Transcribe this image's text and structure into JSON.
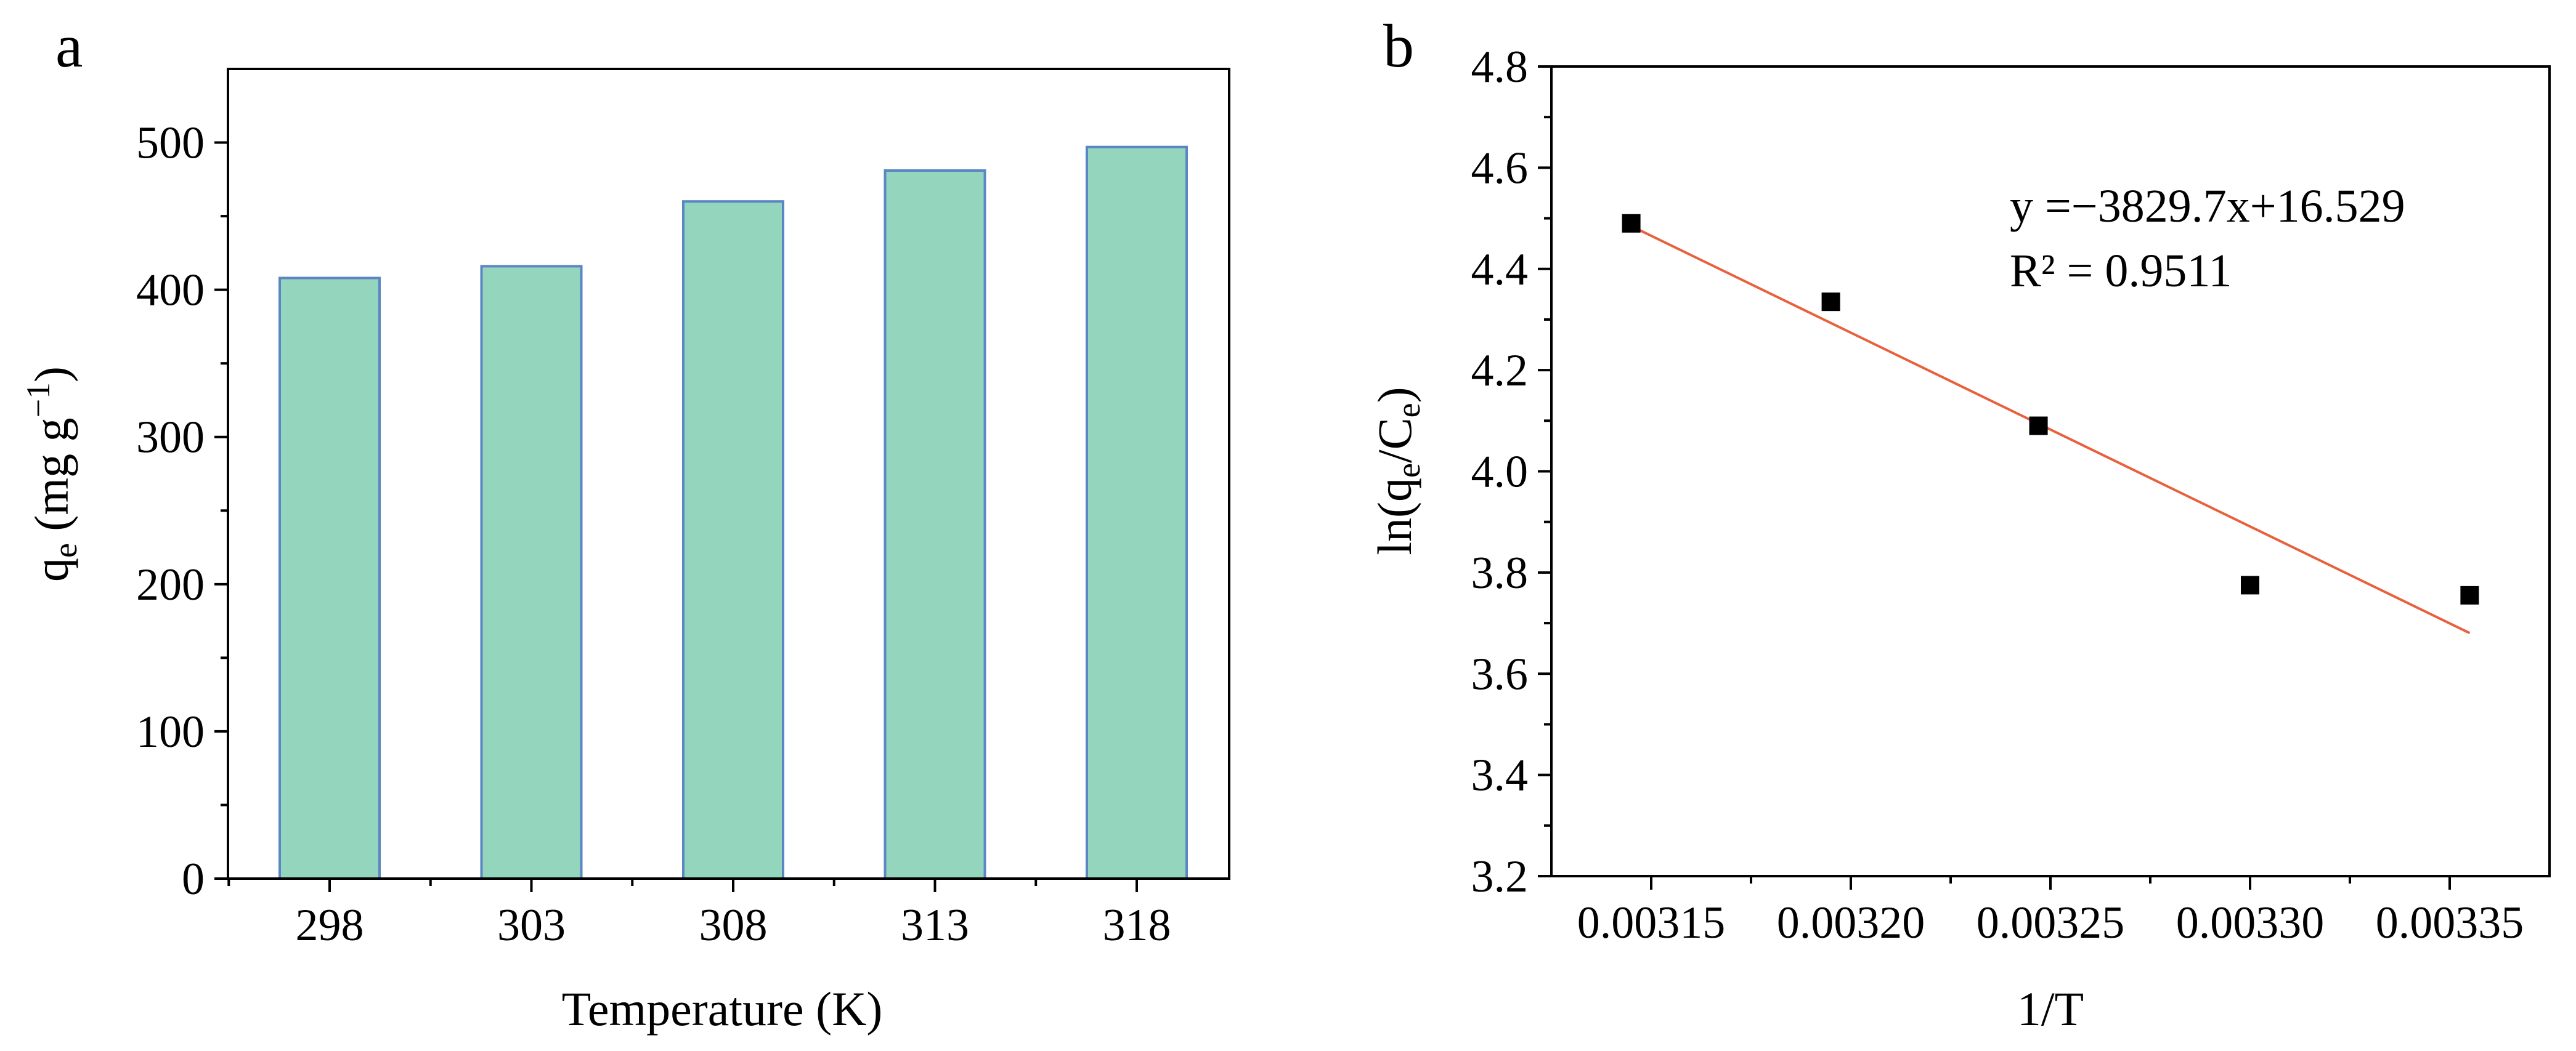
{
  "chart_data": [
    {
      "panel": "a",
      "type": "bar",
      "categories": [
        "298",
        "303",
        "308",
        "313",
        "318"
      ],
      "values": [
        408,
        416,
        460,
        481,
        497
      ],
      "xlabel": "Temperature (K)",
      "ylabel": {
        "main": "q",
        "sub": "e",
        "units": " (mg g",
        "sup": "−1",
        "close": ")"
      },
      "ylim": [
        0,
        550
      ],
      "yticks": [
        "0",
        "100",
        "200",
        "300",
        "400",
        "500"
      ],
      "ytick_values": [
        0,
        100,
        200,
        300,
        400,
        500
      ],
      "colors": {
        "fill": "#93d5bd",
        "edge": "#5b86c4"
      }
    },
    {
      "panel": "b",
      "type": "scatter",
      "x": [
        0.003145,
        0.003195,
        0.003247,
        0.0033,
        0.003355
      ],
      "y": [
        4.49,
        4.335,
        4.09,
        3.775,
        3.755
      ],
      "xlim": [
        0.003125,
        0.003375
      ],
      "ylim": [
        3.2,
        4.8
      ],
      "xticks": [
        "0.00315",
        "0.00320",
        "0.00325",
        "0.00330",
        "0.00335"
      ],
      "xtick_values": [
        0.00315,
        0.0032,
        0.00325,
        0.0033,
        0.00335
      ],
      "yticks": [
        "3.2",
        "3.4",
        "3.6",
        "3.8",
        "4.0",
        "4.2",
        "4.4",
        "4.6",
        "4.8"
      ],
      "ytick_values": [
        3.2,
        3.4,
        3.6,
        3.8,
        4.0,
        4.2,
        4.4,
        4.6,
        4.8
      ],
      "xlabel": "1/T",
      "ylabel": {
        "pre": "ln(q",
        "sub1": "e",
        "mid": "/C",
        "sub2": "e",
        "post": ")"
      },
      "fit": {
        "slope": -3829.7,
        "intercept": 16.529,
        "x_range": [
          0.003145,
          0.003355
        ],
        "equation": "y =−3829.7x+16.529",
        "r2": "R² = 0.9511"
      },
      "colors": {
        "marker": "#000000",
        "fit": "#e8603c"
      }
    }
  ]
}
